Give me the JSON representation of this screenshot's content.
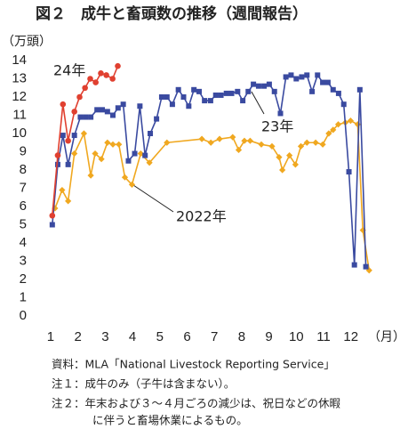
{
  "chart_data": {
    "type": "line",
    "title": "図２　成牛と畜頭数の推移（週間報告）",
    "y_label": "（万頭）",
    "x_label": "（月）",
    "xlim": [
      0.6,
      12.7
    ],
    "xticks": [
      1,
      2,
      3,
      4,
      5,
      6,
      7,
      8,
      9,
      10,
      11,
      12
    ],
    "ylim": [
      0,
      14
    ],
    "yticks": [
      0,
      1,
      2,
      3,
      4,
      5,
      6,
      7,
      8,
      9,
      10,
      11,
      12,
      13,
      14
    ],
    "grid": false,
    "series": [
      {
        "name": "2022年",
        "color": "#f0a820",
        "marker": "diamond",
        "x": [
          1.16,
          1.42,
          1.64,
          1.87,
          2.22,
          2.47,
          2.63,
          2.86,
          3.08,
          3.28,
          3.5,
          3.72,
          3.98,
          4.3,
          4.62,
          5.26,
          6.54,
          6.87,
          7.19,
          7.67,
          7.89,
          8.1,
          8.31,
          8.72,
          9.11,
          9.37,
          9.49,
          9.75,
          9.97,
          10.17,
          10.39,
          10.71,
          10.97,
          11.19,
          11.35,
          11.54,
          11.8,
          11.99,
          12.25,
          12.44,
          12.67
        ],
        "values": [
          5.9,
          6.9,
          6.3,
          8.9,
          10.0,
          7.7,
          8.9,
          8.6,
          9.5,
          9.4,
          9.4,
          7.6,
          7.2,
          8.9,
          8.4,
          9.5,
          9.7,
          9.5,
          9.7,
          9.8,
          9.1,
          9.6,
          9.6,
          9.4,
          9.3,
          8.7,
          8.0,
          8.8,
          8.3,
          9.3,
          9.5,
          9.5,
          9.4,
          10.0,
          10.2,
          10.5,
          10.6,
          10.7,
          10.5,
          4.7,
          2.5
        ]
      },
      {
        "name": "23年",
        "color": "#3a4aa0",
        "marker": "square",
        "x": [
          1.06,
          1.26,
          1.45,
          1.64,
          1.87,
          2.09,
          2.28,
          2.47,
          2.7,
          2.89,
          3.08,
          3.28,
          3.47,
          3.66,
          3.85,
          4.08,
          4.27,
          4.46,
          4.65,
          4.88,
          5.07,
          5.26,
          5.46,
          5.68,
          5.87,
          6.06,
          6.25,
          6.44,
          6.64,
          6.86,
          7.05,
          7.24,
          7.44,
          7.63,
          7.85,
          8.04,
          8.24,
          8.43,
          8.62,
          8.82,
          9.01,
          9.2,
          9.42,
          9.62,
          9.81,
          10.0,
          10.2,
          10.39,
          10.58,
          10.78,
          10.97,
          11.16,
          11.35,
          11.55,
          11.74,
          11.93,
          12.13,
          12.33,
          12.55
        ],
        "values": [
          5.0,
          8.3,
          9.9,
          8.3,
          9.9,
          10.9,
          10.9,
          10.9,
          11.3,
          11.3,
          11.2,
          11.0,
          11.4,
          11.6,
          8.5,
          8.9,
          11.5,
          8.8,
          10.0,
          10.8,
          12.0,
          12.0,
          11.6,
          12.4,
          12.0,
          11.5,
          12.4,
          12.3,
          11.8,
          11.8,
          12.1,
          12.1,
          12.2,
          12.2,
          12.3,
          11.8,
          12.3,
          12.7,
          12.6,
          12.6,
          12.7,
          12.3,
          11.1,
          13.1,
          13.2,
          13.0,
          13.1,
          13.2,
          12.3,
          13.2,
          12.8,
          12.8,
          12.4,
          12.2,
          11.6,
          7.9,
          2.8,
          12.4,
          2.7
        ]
      },
      {
        "name": "24年",
        "color": "#e04030",
        "marker": "circle",
        "x": [
          1.06,
          1.26,
          1.45,
          1.64,
          1.87,
          2.06,
          2.26,
          2.45,
          2.65,
          2.84,
          3.04,
          3.27,
          3.46
        ],
        "values": [
          5.5,
          8.8,
          11.6,
          9.6,
          11.2,
          12.0,
          12.5,
          13.0,
          12.8,
          13.3,
          13.2,
          13.0,
          13.7
        ]
      }
    ],
    "notes": [
      "資料：MLA「National Livestock Reporting Service」",
      "注１：成牛のみ（子牛は含まない）。",
      "注２：年末および３～４月ごろの減少は、祝日などの休暇",
      "に伴うと畜場休業によるもの。"
    ]
  }
}
